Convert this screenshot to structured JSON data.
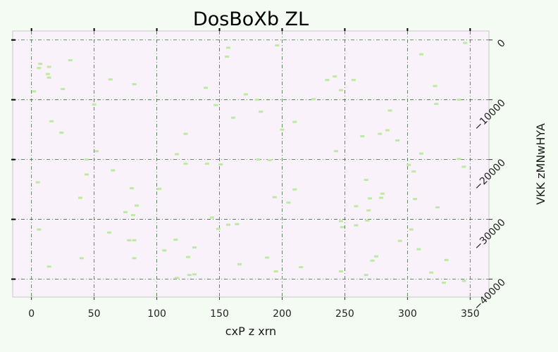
{
  "chart_data": {
    "type": "scatter",
    "title": "DosBoXb ZL",
    "xlabel": "cxP z xrn",
    "ylabel": "VKK  zMNwHYA",
    "xlim": [
      -15,
      365
    ],
    "ylim": [
      -43000,
      1500
    ],
    "y_axis_side": "right",
    "y_inverted": true,
    "x_ticks": [
      0,
      50,
      100,
      150,
      200,
      250,
      300,
      350
    ],
    "x_tick_labels": [
      "0",
      "50",
      "100",
      "150",
      "200",
      "250",
      "300",
      "350"
    ],
    "y_ticks": [
      0,
      -10000,
      -20000,
      -30000,
      -40000
    ],
    "y_tick_labels": [
      "0",
      "−10000",
      "−20000",
      "−30000",
      "−40000"
    ],
    "grid": true,
    "colors": {
      "plot_bg": "#f9f2fa",
      "page_bg": "#f3fbf2",
      "marker": "#bde9a0",
      "grid": "#3d6b3d",
      "frame": "#c8c8c8"
    },
    "series": [
      {
        "marker": "dash",
        "points": [
          [
            346,
            -500
          ],
          [
            157,
            -1300
          ],
          [
            196,
            -900
          ],
          [
            156,
            -2800
          ],
          [
            311,
            -2400
          ],
          [
            31,
            -3400
          ],
          [
            7,
            -4000
          ],
          [
            14,
            -4500
          ],
          [
            6,
            -4700
          ],
          [
            13,
            -5700
          ],
          [
            14,
            -6300
          ],
          [
            63,
            -6600
          ],
          [
            82,
            -7400
          ],
          [
            242,
            -6100
          ],
          [
            236,
            -6700
          ],
          [
            257,
            -6700
          ],
          [
            322,
            -7700
          ],
          [
            139,
            -8000
          ],
          [
            25,
            -8200
          ],
          [
            2,
            -8600
          ],
          [
            247,
            -8400
          ],
          [
            171,
            -9100
          ],
          [
            180,
            -10000
          ],
          [
            225,
            -9900
          ],
          [
            147,
            -10900
          ],
          [
            323,
            -10700
          ],
          [
            341,
            -10000
          ],
          [
            50,
            -10800
          ],
          [
            286,
            -11800
          ],
          [
            183,
            -12000
          ],
          [
            161,
            -13000
          ],
          [
            16,
            -13600
          ],
          [
            210,
            -13700
          ],
          [
            24,
            -15500
          ],
          [
            200,
            -15000
          ],
          [
            284,
            -15100
          ],
          [
            123,
            -15700
          ],
          [
            264,
            -16100
          ],
          [
            278,
            -15700
          ],
          [
            292,
            -16800
          ],
          [
            52,
            -18600
          ],
          [
            243,
            -18600
          ],
          [
            311,
            -19000
          ],
          [
            116,
            -19100
          ],
          [
            44,
            -20000
          ],
          [
            181,
            -20000
          ],
          [
            190,
            -20100
          ],
          [
            341,
            -19900
          ],
          [
            123,
            -20700
          ],
          [
            140,
            -20700
          ],
          [
            151,
            -20800
          ],
          [
            301,
            -20900
          ],
          [
            345,
            -21200
          ],
          [
            65,
            -21800
          ],
          [
            305,
            -22000
          ],
          [
            44,
            -22500
          ],
          [
            5,
            -23800
          ],
          [
            267,
            -23400
          ],
          [
            80,
            -24800
          ],
          [
            102,
            -24900
          ],
          [
            210,
            -25000
          ],
          [
            280,
            -25700
          ],
          [
            39,
            -26400
          ],
          [
            194,
            -26300
          ],
          [
            270,
            -26500
          ],
          [
            279,
            -26400
          ],
          [
            306,
            -26600
          ],
          [
            205,
            -27200
          ],
          [
            84,
            -27700
          ],
          [
            259,
            -27800
          ],
          [
            324,
            -28000
          ],
          [
            269,
            -28500
          ],
          [
            75,
            -28800
          ],
          [
            81,
            -29300
          ],
          [
            144,
            -29700
          ],
          [
            268,
            -30200
          ],
          [
            247,
            -30300
          ],
          [
            157,
            -30900
          ],
          [
            164,
            -30800
          ],
          [
            259,
            -31000
          ],
          [
            6,
            -31700
          ],
          [
            149,
            -31600
          ],
          [
            248,
            -31300
          ],
          [
            303,
            -31700
          ],
          [
            62,
            -32200
          ],
          [
            78,
            -33500
          ],
          [
            82,
            -33500
          ],
          [
            115,
            -33400
          ],
          [
            294,
            -33600
          ],
          [
            130,
            -34700
          ],
          [
            106,
            -35200
          ],
          [
            309,
            -35000
          ],
          [
            125,
            -36300
          ],
          [
            40,
            -36500
          ],
          [
            82,
            -36500
          ],
          [
            188,
            -36400
          ],
          [
            275,
            -36200
          ],
          [
            272,
            -36900
          ],
          [
            331,
            -36800
          ],
          [
            166,
            -37500
          ],
          [
            14,
            -37900
          ],
          [
            215,
            -38000
          ],
          [
            195,
            -38700
          ],
          [
            247,
            -38700
          ],
          [
            319,
            -38900
          ],
          [
            126,
            -39300
          ],
          [
            130,
            -39200
          ],
          [
            116,
            -39800
          ],
          [
            267,
            -39300
          ],
          [
            345,
            -40300
          ],
          [
            329,
            -40600
          ]
        ]
      }
    ]
  }
}
